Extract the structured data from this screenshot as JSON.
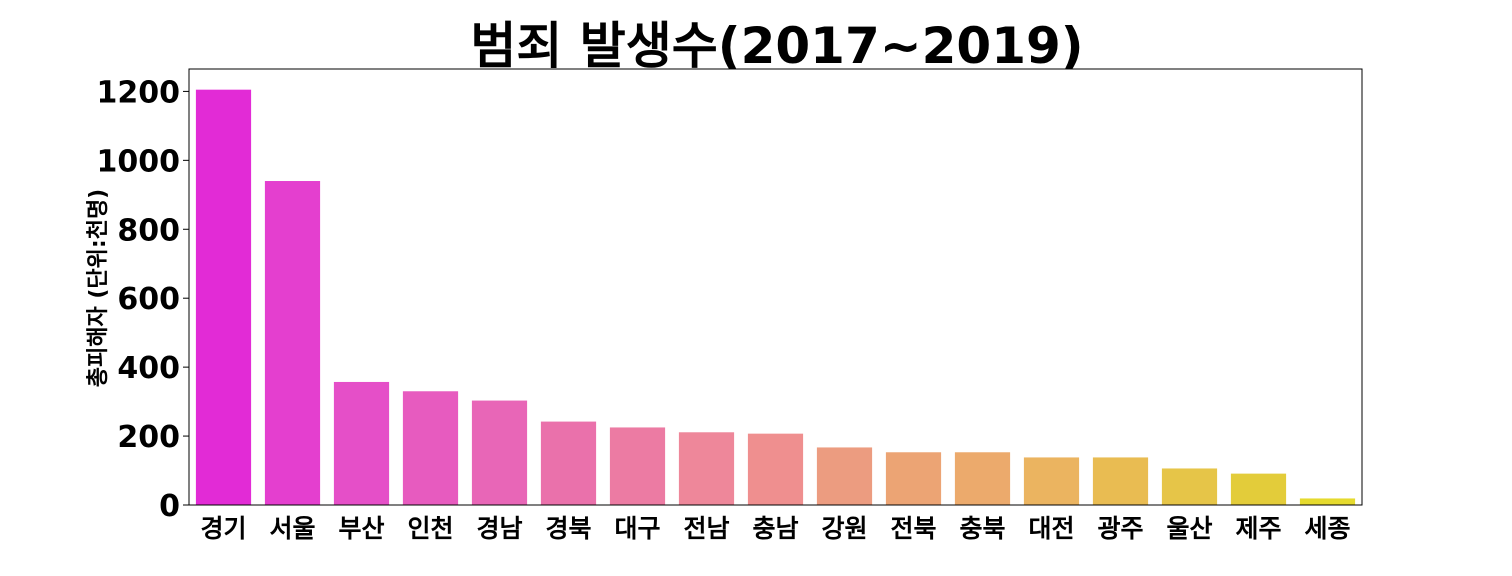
{
  "chart_data": {
    "type": "bar",
    "title": "범죄 발생수(2017~2019)",
    "xlabel": "",
    "ylabel": "총피해자 (단위:천명)",
    "ylim": [
      0,
      1265
    ],
    "yticks": [
      "0",
      "200",
      "400",
      "600",
      "800",
      "1000",
      "1200"
    ],
    "grid": false,
    "categories": [
      "경기",
      "서울",
      "부산",
      "인천",
      "경남",
      "경북",
      "대구",
      "전남",
      "충남",
      "강원",
      "전북",
      "충북",
      "대전",
      "광주",
      "울산",
      "제주",
      "세종"
    ],
    "values": [
      1205,
      940,
      357,
      330,
      303,
      242,
      225,
      211,
      207,
      167,
      153,
      153,
      138,
      138,
      106,
      91,
      19
    ],
    "colors": [
      "#e22bd6",
      "#e43fcf",
      "#e54fc8",
      "#e75bbf",
      "#e866b7",
      "#ea71ab",
      "#ec7ba3",
      "#ee879a",
      "#ef8f8f",
      "#ec9c80",
      "#eca474",
      "#ecaa6c",
      "#ebb460",
      "#e9bc52",
      "#e6c548",
      "#e3cc3a",
      "#e5da2e"
    ]
  }
}
